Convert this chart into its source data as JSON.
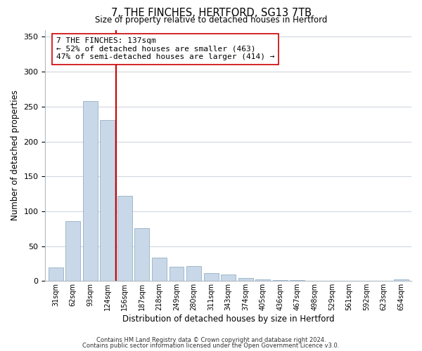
{
  "title": "7, THE FINCHES, HERTFORD, SG13 7TB",
  "subtitle": "Size of property relative to detached houses in Hertford",
  "xlabel": "Distribution of detached houses by size in Hertford",
  "ylabel": "Number of detached properties",
  "bar_labels": [
    "31sqm",
    "62sqm",
    "93sqm",
    "124sqm",
    "156sqm",
    "187sqm",
    "218sqm",
    "249sqm",
    "280sqm",
    "311sqm",
    "343sqm",
    "374sqm",
    "405sqm",
    "436sqm",
    "467sqm",
    "498sqm",
    "529sqm",
    "561sqm",
    "592sqm",
    "623sqm",
    "654sqm"
  ],
  "bar_values": [
    19,
    86,
    258,
    231,
    122,
    76,
    33,
    20,
    21,
    11,
    9,
    4,
    2,
    1,
    1,
    0,
    0,
    0,
    0,
    0,
    2
  ],
  "bar_color": "#c8d8e8",
  "bar_edge_color": "#a0b8cc",
  "vline_x": 3.5,
  "vline_color": "#cc0000",
  "annotation_title": "7 THE FINCHES: 137sqm",
  "annotation_line1": "← 52% of detached houses are smaller (463)",
  "annotation_line2": "47% of semi-detached houses are larger (414) →",
  "annotation_box_color": "#ffffff",
  "annotation_box_edge": "#cc0000",
  "ylim": [
    0,
    360
  ],
  "yticks": [
    0,
    50,
    100,
    150,
    200,
    250,
    300,
    350
  ],
  "footnote1": "Contains HM Land Registry data © Crown copyright and database right 2024.",
  "footnote2": "Contains public sector information licensed under the Open Government Licence v3.0.",
  "bg_color": "#ffffff",
  "grid_color": "#d0d8e0"
}
